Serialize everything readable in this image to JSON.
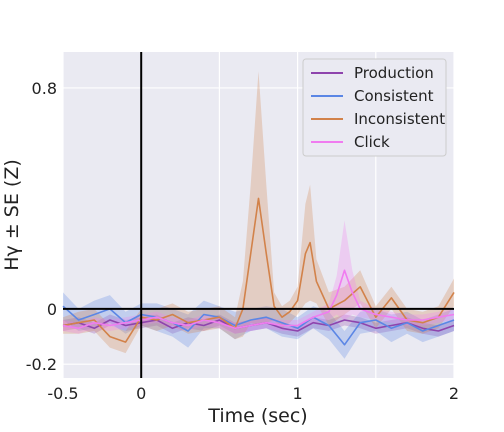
{
  "chart_data": {
    "type": "line",
    "title": "",
    "xlabel": "Time (sec)",
    "ylabel": "Hγ ± SE (Z)",
    "xlim": [
      -0.5,
      2.0
    ],
    "ylim": [
      -0.25,
      0.93
    ],
    "x_ticks": [
      {
        "value": -0.5,
        "label": "-0.5"
      },
      {
        "value": 0,
        "label": "0"
      },
      {
        "value": 1,
        "label": "1"
      },
      {
        "value": 2,
        "label": "2"
      }
    ],
    "y_ticks": [
      {
        "value": -0.2,
        "label": "-0.2"
      },
      {
        "value": 0,
        "label": "0"
      },
      {
        "value": 0.8,
        "label": "0.8"
      }
    ],
    "x_minor_grid": [
      0.5,
      1.5
    ],
    "reference_lines": {
      "vertical_x": 0,
      "horizontal_y": 0
    },
    "grid": true,
    "background": "#eaeaf2",
    "legend_position": "top-right",
    "series": [
      {
        "name": "Production",
        "color": "#8e44ad",
        "x": [
          -0.5,
          -0.4,
          -0.3,
          -0.2,
          -0.1,
          0.0,
          0.1,
          0.2,
          0.3,
          0.4,
          0.5,
          0.6,
          0.7,
          0.8,
          0.9,
          1.0,
          1.1,
          1.2,
          1.3,
          1.4,
          1.5,
          1.6,
          1.7,
          1.8,
          1.9,
          2.0
        ],
        "y": [
          -0.06,
          -0.05,
          -0.07,
          -0.04,
          -0.06,
          -0.05,
          -0.04,
          -0.07,
          -0.05,
          -0.06,
          -0.04,
          -0.07,
          -0.06,
          -0.05,
          -0.07,
          -0.08,
          -0.05,
          -0.06,
          -0.04,
          -0.05,
          -0.07,
          -0.06,
          -0.05,
          -0.07,
          -0.08,
          -0.06
        ],
        "se": [
          0.02,
          0.02,
          0.02,
          0.02,
          0.02,
          0.02,
          0.02,
          0.02,
          0.02,
          0.02,
          0.02,
          0.02,
          0.02,
          0.02,
          0.02,
          0.02,
          0.02,
          0.02,
          0.02,
          0.02,
          0.02,
          0.02,
          0.02,
          0.02,
          0.02,
          0.02
        ]
      },
      {
        "name": "Consistent",
        "color": "#5b86e5",
        "x": [
          -0.5,
          -0.4,
          -0.3,
          -0.2,
          -0.1,
          0.0,
          0.1,
          0.2,
          0.3,
          0.4,
          0.5,
          0.6,
          0.7,
          0.8,
          0.9,
          1.0,
          1.1,
          1.2,
          1.3,
          1.4,
          1.5,
          1.6,
          1.7,
          1.8,
          1.9,
          2.0
        ],
        "y": [
          0.01,
          -0.04,
          -0.02,
          0.0,
          -0.05,
          -0.02,
          -0.03,
          -0.05,
          -0.08,
          -0.02,
          -0.03,
          -0.06,
          -0.04,
          -0.03,
          -0.05,
          -0.07,
          -0.03,
          -0.06,
          -0.13,
          -0.05,
          -0.04,
          -0.07,
          -0.05,
          -0.08,
          -0.06,
          -0.04
        ],
        "se": [
          0.05,
          0.04,
          0.05,
          0.05,
          0.04,
          0.04,
          0.05,
          0.05,
          0.06,
          0.05,
          0.04,
          0.05,
          0.04,
          0.04,
          0.05,
          0.04,
          0.04,
          0.05,
          0.05,
          0.04,
          0.04,
          0.05,
          0.04,
          0.04,
          0.04,
          0.04
        ]
      },
      {
        "name": "Inconsistent",
        "color": "#d2824a",
        "x": [
          -0.5,
          -0.4,
          -0.3,
          -0.2,
          -0.1,
          0.0,
          0.1,
          0.2,
          0.3,
          0.4,
          0.5,
          0.6,
          0.65,
          0.7,
          0.75,
          0.8,
          0.85,
          0.9,
          0.95,
          1.0,
          1.05,
          1.08,
          1.12,
          1.2,
          1.3,
          1.4,
          1.5,
          1.6,
          1.7,
          1.8,
          1.9,
          2.0
        ],
        "y": [
          -0.06,
          -0.05,
          -0.04,
          -0.1,
          -0.12,
          -0.03,
          -0.04,
          -0.02,
          -0.05,
          -0.04,
          -0.03,
          -0.07,
          0.0,
          0.2,
          0.4,
          0.2,
          0.01,
          -0.03,
          -0.01,
          0.03,
          0.2,
          0.24,
          0.1,
          0.0,
          0.03,
          0.08,
          -0.03,
          0.04,
          -0.04,
          -0.05,
          -0.03,
          0.06
        ],
        "se": [
          0.03,
          0.04,
          0.04,
          0.04,
          0.04,
          0.03,
          0.04,
          0.04,
          0.04,
          0.04,
          0.04,
          0.04,
          0.1,
          0.25,
          0.46,
          0.25,
          0.05,
          0.04,
          0.04,
          0.05,
          0.18,
          0.21,
          0.08,
          0.06,
          0.05,
          0.06,
          0.04,
          0.04,
          0.04,
          0.04,
          0.04,
          0.05
        ]
      },
      {
        "name": "Click",
        "color": "#f07cf0",
        "x": [
          -0.5,
          -0.4,
          -0.3,
          -0.2,
          -0.1,
          0.0,
          0.1,
          0.2,
          0.3,
          0.4,
          0.5,
          0.6,
          0.7,
          0.8,
          0.9,
          1.0,
          1.1,
          1.2,
          1.25,
          1.3,
          1.35,
          1.4,
          1.5,
          1.6,
          1.7,
          1.8,
          1.9,
          2.0
        ],
        "y": [
          -0.06,
          -0.07,
          -0.05,
          -0.06,
          -0.05,
          -0.04,
          -0.03,
          -0.05,
          -0.06,
          -0.04,
          -0.05,
          -0.07,
          -0.06,
          -0.05,
          -0.06,
          -0.06,
          -0.03,
          -0.01,
          0.05,
          0.14,
          0.06,
          0.0,
          -0.02,
          -0.03,
          -0.04,
          -0.04,
          -0.03,
          -0.02
        ],
        "se": [
          0.02,
          0.02,
          0.02,
          0.02,
          0.02,
          0.02,
          0.02,
          0.02,
          0.02,
          0.02,
          0.02,
          0.02,
          0.02,
          0.02,
          0.02,
          0.02,
          0.02,
          0.03,
          0.07,
          0.18,
          0.08,
          0.03,
          0.02,
          0.02,
          0.02,
          0.02,
          0.02,
          0.02
        ]
      }
    ]
  }
}
